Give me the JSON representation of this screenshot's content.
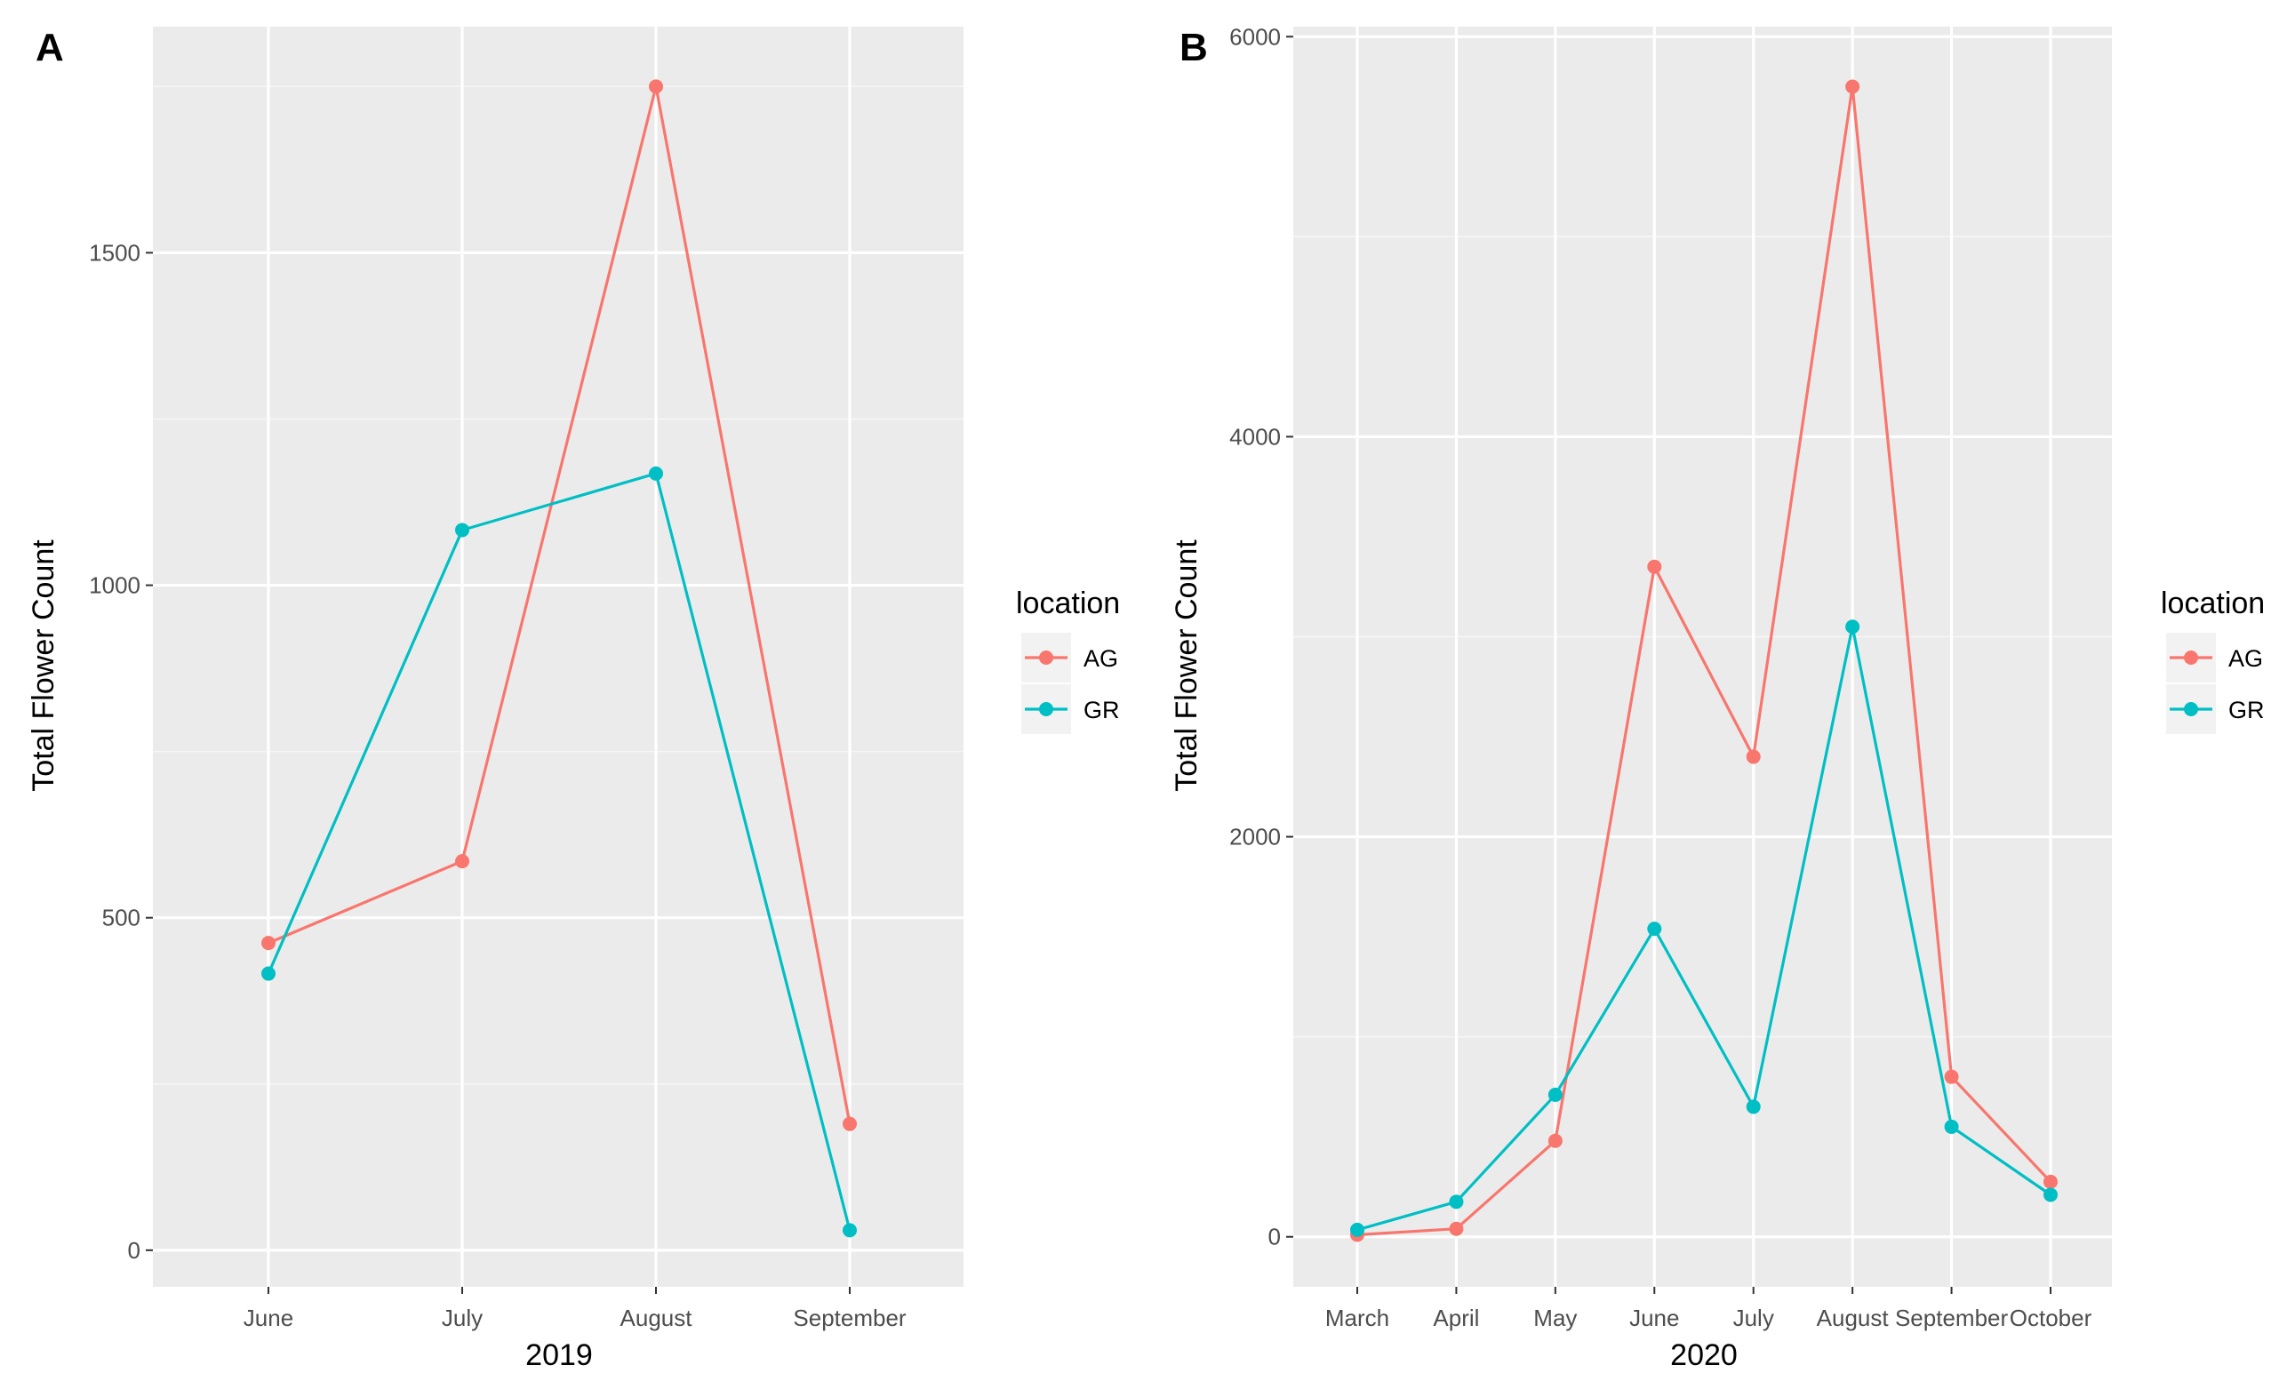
{
  "chart_data": [
    {
      "type": "line",
      "panel_label": "A",
      "title": "",
      "xlabel": "2019",
      "ylabel": "Total Flower Count",
      "categories": [
        "June",
        "July",
        "August",
        "September"
      ],
      "ylim": [
        -55,
        1840
      ],
      "y_major_ticks": [
        0,
        500,
        1000,
        1500
      ],
      "y_tick_labels": [
        "0",
        "500",
        "1000",
        "1500"
      ],
      "y_minor_ticks": [
        250,
        750,
        1250,
        1750
      ],
      "grid": true,
      "legend": {
        "title": "location",
        "position": "right"
      },
      "series": [
        {
          "name": "AG",
          "color": "#F8766D",
          "values": [
            462,
            585,
            1750,
            190
          ]
        },
        {
          "name": "GR",
          "color": "#00BFC4",
          "values": [
            416,
            1083,
            1168,
            30
          ]
        }
      ]
    },
    {
      "type": "line",
      "panel_label": "B",
      "title": "",
      "xlabel": "2020",
      "ylabel": "Total Flower Count",
      "categories": [
        "March",
        "April",
        "May",
        "June",
        "July",
        "August",
        "September",
        "October"
      ],
      "ylim": [
        -250,
        6050
      ],
      "y_major_ticks": [
        0,
        2000,
        4000,
        6000
      ],
      "y_tick_labels": [
        "0",
        "2000",
        "4000",
        "6000"
      ],
      "y_minor_ticks": [
        1000,
        3000,
        5000
      ],
      "grid": true,
      "legend": {
        "title": "location",
        "position": "right"
      },
      "series": [
        {
          "name": "AG",
          "color": "#F8766D",
          "values": [
            10,
            40,
            480,
            3350,
            2400,
            5750,
            800,
            275
          ]
        },
        {
          "name": "GR",
          "color": "#00BFC4",
          "values": [
            35,
            175,
            710,
            1540,
            650,
            3050,
            550,
            210
          ]
        }
      ]
    }
  ]
}
